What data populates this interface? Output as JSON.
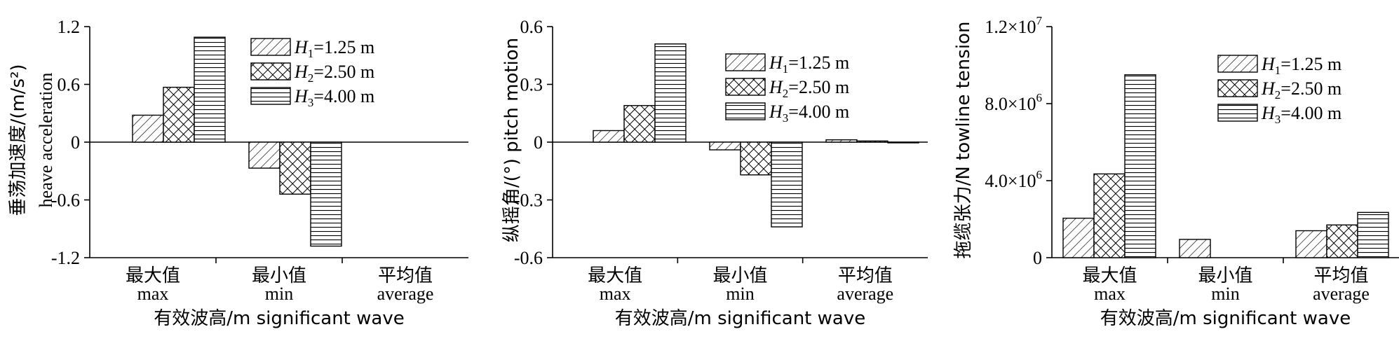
{
  "chart_data": [
    {
      "type": "bar",
      "categories": [
        {
          "cn": "最大值",
          "en": "max"
        },
        {
          "cn": "最小值",
          "en": "min"
        },
        {
          "cn": "平均值",
          "en": "average"
        }
      ],
      "xlabel": "有效波高/m significant wave",
      "ylabel_cn": "垂荡加速度/(m/s²)",
      "ylabel_en": "heave acceleration",
      "ylim": [
        -1.2,
        1.2
      ],
      "yticks": [
        -1.2,
        -0.6,
        0,
        0.6,
        1.2
      ],
      "ytick_labels": [
        "-1.2",
        "-0.6",
        "0",
        "0.6",
        "1.2"
      ],
      "grid": false,
      "legend_position": "top-right",
      "series": [
        {
          "name": "H1=1.25 m",
          "pattern": "diagonal",
          "values": [
            0.28,
            -0.27,
            0
          ]
        },
        {
          "name": "H2=2.50 m",
          "pattern": "crosshatch",
          "values": [
            0.57,
            -0.54,
            0
          ]
        },
        {
          "name": "H3=4.00 m",
          "pattern": "horizontal",
          "values": [
            1.09,
            -1.08,
            0
          ]
        }
      ]
    },
    {
      "type": "bar",
      "categories": [
        {
          "cn": "最大值",
          "en": "max"
        },
        {
          "cn": "最小值",
          "en": "min"
        },
        {
          "cn": "平均值",
          "en": "average"
        }
      ],
      "xlabel": "有效波高/m significant wave",
      "ylabel_cn": "纵摇角/(°)",
      "ylabel_en": "pitch motion",
      "ylim": [
        -0.6,
        0.6
      ],
      "yticks": [
        -0.6,
        -0.3,
        0,
        0.3,
        0.6
      ],
      "ytick_labels": [
        "-0.6",
        "-0.3",
        "0",
        "0.3",
        "0.6"
      ],
      "grid": false,
      "legend_position": "top-right",
      "series": [
        {
          "name": "H1=1.25 m",
          "pattern": "diagonal",
          "values": [
            0.06,
            -0.04,
            0.012
          ]
        },
        {
          "name": "H2=2.50 m",
          "pattern": "crosshatch",
          "values": [
            0.19,
            -0.17,
            0.006
          ]
        },
        {
          "name": "H3=4.00 m",
          "pattern": "horizontal",
          "values": [
            0.51,
            -0.44,
            -0.003
          ]
        }
      ]
    },
    {
      "type": "bar",
      "categories": [
        {
          "cn": "最大值",
          "en": "max"
        },
        {
          "cn": "最小值",
          "en": "min"
        },
        {
          "cn": "平均值",
          "en": "average"
        }
      ],
      "xlabel": "有效波高/m significant wave",
      "ylabel_cn": "拖缆张力/N",
      "ylabel_en": "towline tension",
      "ylim": [
        0,
        12000000
      ],
      "yticks": [
        0,
        4000000,
        8000000,
        12000000
      ],
      "ytick_labels": [
        {
          "base": "0",
          "exp": ""
        },
        {
          "base": "4.0×10",
          "exp": "6"
        },
        {
          "base": "8.0×10",
          "exp": "6"
        },
        {
          "base": "1.2×10",
          "exp": "7"
        }
      ],
      "grid": false,
      "legend_position": "top-right",
      "series": [
        {
          "name": "H1=1.25 m",
          "pattern": "diagonal",
          "values": [
            2050000,
            950000,
            1400000
          ]
        },
        {
          "name": "H2=2.50 m",
          "pattern": "crosshatch",
          "values": [
            4350000,
            0,
            1700000
          ]
        },
        {
          "name": "H3=4.00 m",
          "pattern": "horizontal",
          "values": [
            9500000,
            0,
            2350000
          ]
        }
      ]
    }
  ],
  "legend_labels": [
    {
      "sym": "H",
      "sub": "1",
      "rest": "=1.25 m"
    },
    {
      "sym": "H",
      "sub": "2",
      "rest": "=2.50 m"
    },
    {
      "sym": "H",
      "sub": "3",
      "rest": "=4.00 m"
    }
  ]
}
